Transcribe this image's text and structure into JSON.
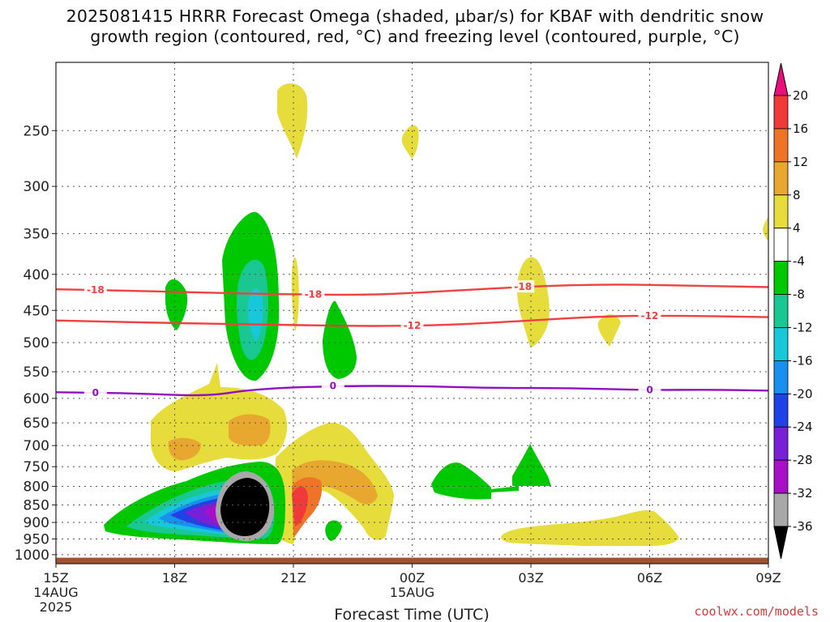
{
  "title": {
    "line1": "2025081415 HRRR Forecast Omega (shaded, µbar/s) for KBAF with dendritic snow",
    "line2": "growth region (contoured, red, °C) and freezing level (contoured, purple, °C)"
  },
  "credit": "coolwx.com/models",
  "chart_data": {
    "type": "heatmap",
    "title": "2025081415 HRRR Forecast Omega (shaded, µbar/s) for KBAF with dendritic snow growth region (contoured, red, °C) and freezing level (contoured, purple, °C)",
    "xlabel": "Forecast Time (UTC)",
    "ylabel": "",
    "x_ticks": [
      {
        "hour": 0,
        "label": "15Z",
        "sub1": "14AUG",
        "sub2": "2025"
      },
      {
        "hour": 3,
        "label": "18Z",
        "sub1": "",
        "sub2": ""
      },
      {
        "hour": 6,
        "label": "21Z",
        "sub1": "",
        "sub2": ""
      },
      {
        "hour": 9,
        "label": "00Z",
        "sub1": "15AUG",
        "sub2": ""
      },
      {
        "hour": 12,
        "label": "03Z",
        "sub1": "",
        "sub2": ""
      },
      {
        "hour": 15,
        "label": "06Z",
        "sub1": "",
        "sub2": ""
      },
      {
        "hour": 18,
        "label": "09Z",
        "sub1": "",
        "sub2": ""
      }
    ],
    "y_axis": "pressure (hPa), log scale",
    "y_ticks": [
      250,
      300,
      350,
      400,
      450,
      500,
      550,
      600,
      650,
      700,
      750,
      800,
      850,
      900,
      950,
      1000
    ],
    "xlim_hours": [
      0,
      18
    ],
    "ylim_hpa": [
      200,
      1030
    ],
    "grid": true,
    "colorbar": {
      "labels": [
        "20",
        "16",
        "12",
        "8",
        "4",
        "-4",
        "-8",
        "-12",
        "-16",
        "-20",
        "-24",
        "-28",
        "-32",
        "-36"
      ],
      "colors": [
        "#e8107c",
        "#f03a3a",
        "#f07428",
        "#e8a830",
        "#e6dc3c",
        "#ffffff",
        "#00c800",
        "#18c890",
        "#18c8d8",
        "#1890f0",
        "#2040e8",
        "#7820d8",
        "#a810c8",
        "#a8a8a8",
        "#000000"
      ]
    },
    "contours": [
      {
        "name": "-18",
        "color": "#f04040",
        "label_hours": [
          1.0,
          6.5,
          11.8
        ],
        "points": [
          [
            0,
            420
          ],
          [
            2,
            422
          ],
          [
            4,
            425
          ],
          [
            6,
            427
          ],
          [
            8,
            428
          ],
          [
            10,
            422
          ],
          [
            12,
            416
          ],
          [
            14,
            413
          ],
          [
            16,
            415
          ],
          [
            18,
            417
          ]
        ]
      },
      {
        "name": "-12",
        "color": "#f04040",
        "label_hours": [
          9.0,
          15.0
        ],
        "points": [
          [
            0,
            465
          ],
          [
            2,
            468
          ],
          [
            4,
            470
          ],
          [
            6,
            472
          ],
          [
            8,
            474
          ],
          [
            10,
            472
          ],
          [
            12,
            465
          ],
          [
            14,
            458
          ],
          [
            16,
            458
          ],
          [
            18,
            460
          ]
        ]
      },
      {
        "name": "0",
        "color": "#9010c0",
        "label_hours": [
          1.0,
          7.0,
          15.0
        ],
        "points": [
          [
            0,
            588
          ],
          [
            2,
            590
          ],
          [
            3.8,
            596
          ],
          [
            5,
            582
          ],
          [
            7,
            576
          ],
          [
            9,
            576
          ],
          [
            11,
            580
          ],
          [
            13,
            580
          ],
          [
            15,
            584
          ],
          [
            16.5,
            583
          ],
          [
            18,
            585
          ]
        ]
      }
    ],
    "ground_hpa": 1010
  }
}
